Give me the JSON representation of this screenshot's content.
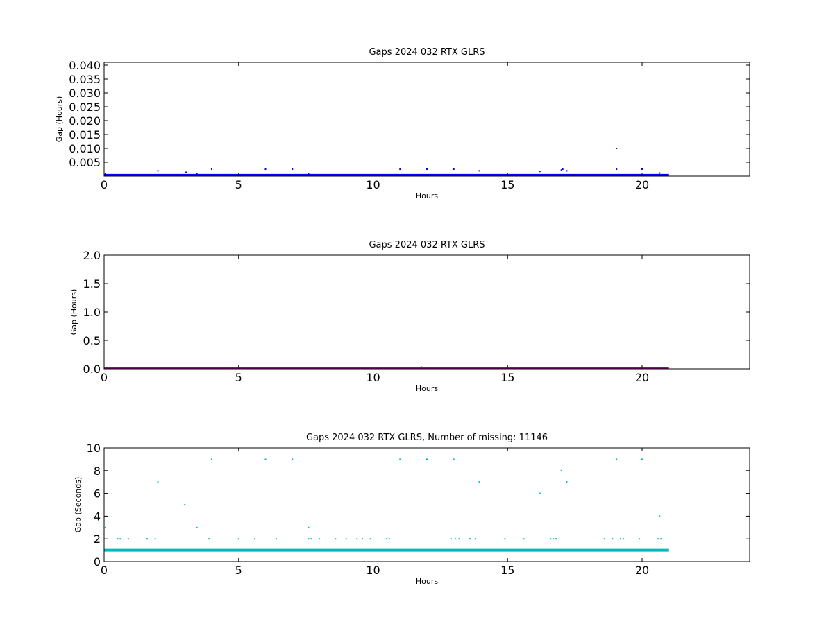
{
  "chart_data": [
    {
      "type": "scatter",
      "title": "Gaps 2024 032 RTX  GLRS",
      "xlabel": "Hours",
      "ylabel": "Gap (Hours)",
      "xlim": [
        0,
        24
      ],
      "ylim": [
        0,
        0.041
      ],
      "xticks": [
        0,
        5,
        10,
        15,
        20
      ],
      "xtick_labels": [
        "0",
        "5",
        "10",
        "15",
        "20"
      ],
      "yticks": [
        0.005,
        0.01,
        0.015,
        0.02,
        0.025,
        0.03,
        0.035,
        0.04
      ],
      "ytick_labels": [
        "0.005",
        "0.010",
        "0.015",
        "0.020",
        "0.025",
        "0.030",
        "0.035",
        "0.040"
      ],
      "color": "#0000ff",
      "dense_band": {
        "x": [
          0,
          21.0
        ],
        "y": 0.00028
      },
      "points": [
        {
          "x": 0.05,
          "y": 0.00083
        },
        {
          "x": 2.0,
          "y": 0.0019
        },
        {
          "x": 3.05,
          "y": 0.0014
        },
        {
          "x": 3.45,
          "y": 0.00083
        },
        {
          "x": 4.0,
          "y": 0.0025
        },
        {
          "x": 6.0,
          "y": 0.0025
        },
        {
          "x": 7.0,
          "y": 0.0025
        },
        {
          "x": 7.6,
          "y": 0.00083
        },
        {
          "x": 11.0,
          "y": 0.0025
        },
        {
          "x": 12.0,
          "y": 0.0025
        },
        {
          "x": 13.0,
          "y": 0.0025
        },
        {
          "x": 13.95,
          "y": 0.0019
        },
        {
          "x": 16.2,
          "y": 0.0017
        },
        {
          "x": 17.0,
          "y": 0.0022
        },
        {
          "x": 17.05,
          "y": 0.0025
        },
        {
          "x": 17.2,
          "y": 0.0019
        },
        {
          "x": 19.05,
          "y": 0.0025
        },
        {
          "x": 19.05,
          "y": 0.01
        },
        {
          "x": 20.0,
          "y": 0.0025
        },
        {
          "x": 20.65,
          "y": 0.0011
        }
      ]
    },
    {
      "type": "scatter",
      "title": "Gaps 2024 032 RTX  GLRS",
      "xlabel": "Hours",
      "ylabel": "Gap (Hours)",
      "xlim": [
        0,
        24
      ],
      "ylim": [
        0,
        2.0
      ],
      "xticks": [
        0,
        5,
        10,
        15,
        20
      ],
      "xtick_labels": [
        "0",
        "5",
        "10",
        "15",
        "20"
      ],
      "yticks": [
        0.0,
        0.5,
        1.0,
        1.5,
        2.0
      ],
      "ytick_labels": [
        "0.0",
        "0.5",
        "1.0",
        "1.5",
        "2.0"
      ],
      "color": "#990099",
      "dense_band": {
        "x": [
          0,
          21.0
        ],
        "y": 0.0003
      },
      "points": [
        {
          "x": 11.8,
          "y": 0.03
        }
      ]
    },
    {
      "type": "scatter",
      "title": "Gaps 2024 032 RTX  GLRS, Number of missing: 11146",
      "xlabel": "Hours",
      "ylabel": "Gap (Seconds)",
      "xlim": [
        0,
        24
      ],
      "ylim": [
        0,
        10
      ],
      "xticks": [
        0,
        5,
        10,
        15,
        20
      ],
      "xtick_labels": [
        "0",
        "5",
        "10",
        "15",
        "20"
      ],
      "yticks": [
        0,
        2,
        4,
        6,
        8,
        10
      ],
      "ytick_labels": [
        "0",
        "2",
        "4",
        "6",
        "8",
        "10"
      ],
      "color": "#00bbbb",
      "dense_band": {
        "x": [
          0,
          21.0
        ],
        "y": 1
      },
      "points": [
        {
          "x": 0.05,
          "y": 3
        },
        {
          "x": 0.5,
          "y": 2
        },
        {
          "x": 0.6,
          "y": 2
        },
        {
          "x": 0.9,
          "y": 2
        },
        {
          "x": 1.6,
          "y": 2
        },
        {
          "x": 1.9,
          "y": 2
        },
        {
          "x": 2.0,
          "y": 7
        },
        {
          "x": 3.0,
          "y": 5
        },
        {
          "x": 3.45,
          "y": 3
        },
        {
          "x": 3.9,
          "y": 2
        },
        {
          "x": 4.0,
          "y": 9
        },
        {
          "x": 5.0,
          "y": 2
        },
        {
          "x": 6.0,
          "y": 9
        },
        {
          "x": 5.6,
          "y": 2
        },
        {
          "x": 6.4,
          "y": 2
        },
        {
          "x": 7.0,
          "y": 9
        },
        {
          "x": 7.6,
          "y": 3
        },
        {
          "x": 7.6,
          "y": 2
        },
        {
          "x": 7.7,
          "y": 2
        },
        {
          "x": 8.0,
          "y": 2
        },
        {
          "x": 8.6,
          "y": 2
        },
        {
          "x": 9.0,
          "y": 2
        },
        {
          "x": 9.4,
          "y": 2
        },
        {
          "x": 9.6,
          "y": 2
        },
        {
          "x": 9.9,
          "y": 2
        },
        {
          "x": 10.5,
          "y": 2
        },
        {
          "x": 10.6,
          "y": 2
        },
        {
          "x": 11.0,
          "y": 9
        },
        {
          "x": 12.0,
          "y": 9
        },
        {
          "x": 12.9,
          "y": 2
        },
        {
          "x": 13.0,
          "y": 9
        },
        {
          "x": 13.05,
          "y": 2
        },
        {
          "x": 13.2,
          "y": 2
        },
        {
          "x": 13.6,
          "y": 2
        },
        {
          "x": 13.8,
          "y": 2
        },
        {
          "x": 13.95,
          "y": 7
        },
        {
          "x": 14.9,
          "y": 2
        },
        {
          "x": 15.6,
          "y": 2
        },
        {
          "x": 16.2,
          "y": 6
        },
        {
          "x": 16.6,
          "y": 2
        },
        {
          "x": 16.7,
          "y": 2
        },
        {
          "x": 16.8,
          "y": 2
        },
        {
          "x": 17.0,
          "y": 8
        },
        {
          "x": 17.2,
          "y": 7
        },
        {
          "x": 18.6,
          "y": 2
        },
        {
          "x": 18.9,
          "y": 2
        },
        {
          "x": 19.05,
          "y": 9
        },
        {
          "x": 19.2,
          "y": 2
        },
        {
          "x": 19.3,
          "y": 2
        },
        {
          "x": 19.9,
          "y": 2
        },
        {
          "x": 20.0,
          "y": 9
        },
        {
          "x": 20.6,
          "y": 2
        },
        {
          "x": 20.7,
          "y": 2
        },
        {
          "x": 20.65,
          "y": 4
        }
      ]
    }
  ]
}
